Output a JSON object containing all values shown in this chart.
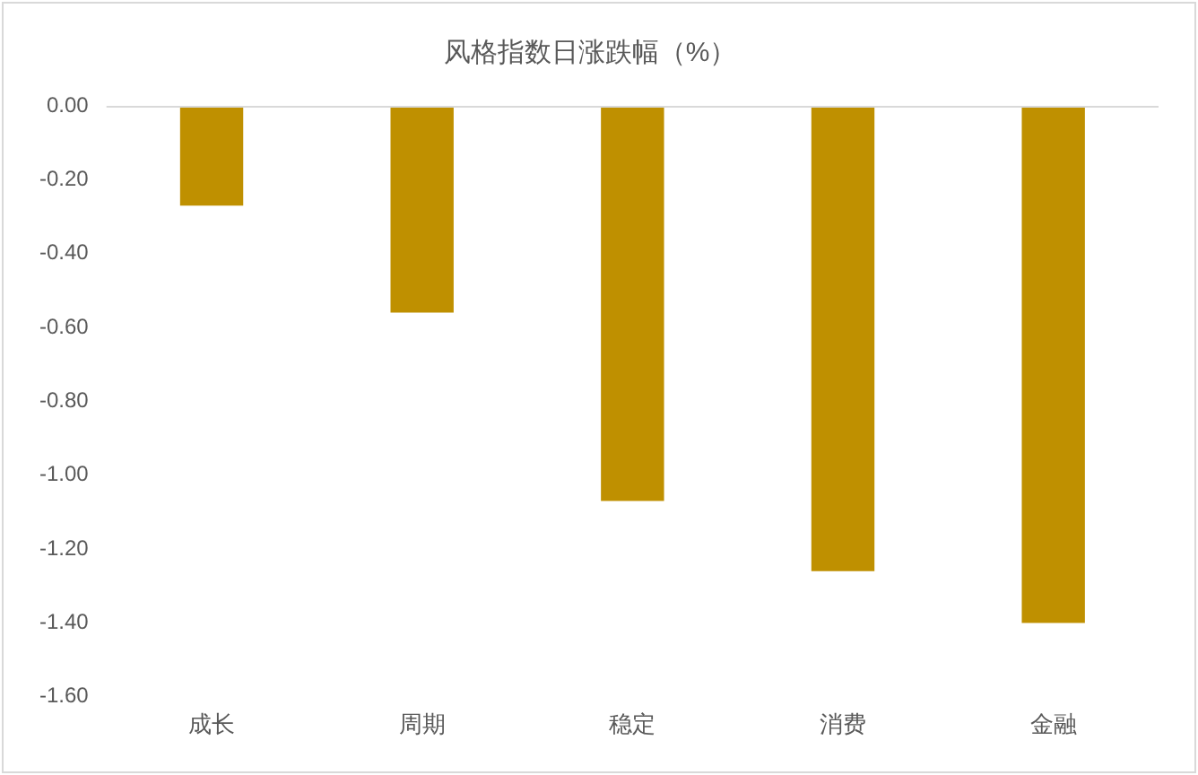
{
  "chart_data": {
    "type": "bar",
    "title": "风格指数日涨跌幅（%）",
    "categories": [
      "成长",
      "周期",
      "稳定",
      "消费",
      "金融"
    ],
    "values": [
      -0.27,
      -0.56,
      -1.07,
      -1.26,
      -1.4
    ],
    "color": "#bf9000",
    "ylim": [
      -1.6,
      0
    ],
    "yticks": [
      {
        "value": 0,
        "label": "0.00"
      },
      {
        "value": -0.2,
        "label": "-0.20"
      },
      {
        "value": -0.4,
        "label": "-0.40"
      },
      {
        "value": -0.6,
        "label": "-0.60"
      },
      {
        "value": -0.8,
        "label": "-0.80"
      },
      {
        "value": -1,
        "label": "-1.00"
      },
      {
        "value": -1.2,
        "label": "-1.20"
      },
      {
        "value": -1.4,
        "label": "-1.40"
      },
      {
        "value": -1.6,
        "label": "-1.60"
      }
    ],
    "grid": false,
    "legend": false
  }
}
